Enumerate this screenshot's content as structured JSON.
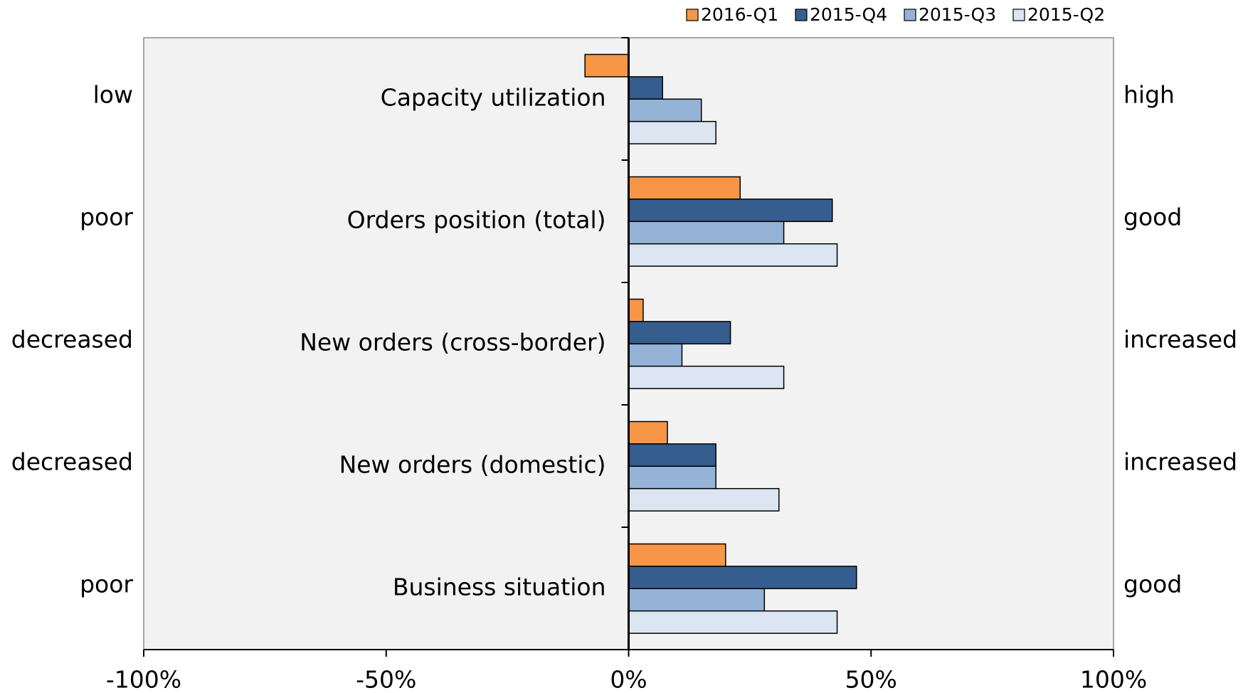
{
  "chart_data": {
    "type": "bar",
    "orientation": "horizontal",
    "categories": [
      "Capacity utilization",
      "Orders position (total)",
      "New orders (cross-border)",
      "New orders (domestic)",
      "Business situation"
    ],
    "left_labels": [
      "low",
      "poor",
      "decreased",
      "decreased",
      "poor"
    ],
    "right_labels": [
      "high",
      "good",
      "increased",
      "increased",
      "good"
    ],
    "series": [
      {
        "name": "2016-Q1",
        "color": "#f79646",
        "values": [
          -9,
          23,
          3,
          8,
          20
        ]
      },
      {
        "name": "2015-Q4",
        "color": "#355d8e",
        "values": [
          7,
          42,
          21,
          18,
          47
        ]
      },
      {
        "name": "2015-Q3",
        "color": "#95b3d7",
        "values": [
          15,
          32,
          11,
          18,
          28
        ]
      },
      {
        "name": "2015-Q2",
        "color": "#dce6f2",
        "values": [
          18,
          43,
          32,
          31,
          43
        ]
      }
    ],
    "xlim": [
      -100,
      100
    ],
    "xticks": [
      {
        "value": -100,
        "label": "-100%"
      },
      {
        "value": -50,
        "label": "-50%"
      },
      {
        "value": 0,
        "label": "0%"
      },
      {
        "value": 50,
        "label": "50%"
      },
      {
        "value": 100,
        "label": "100%"
      }
    ],
    "legend": "top"
  }
}
